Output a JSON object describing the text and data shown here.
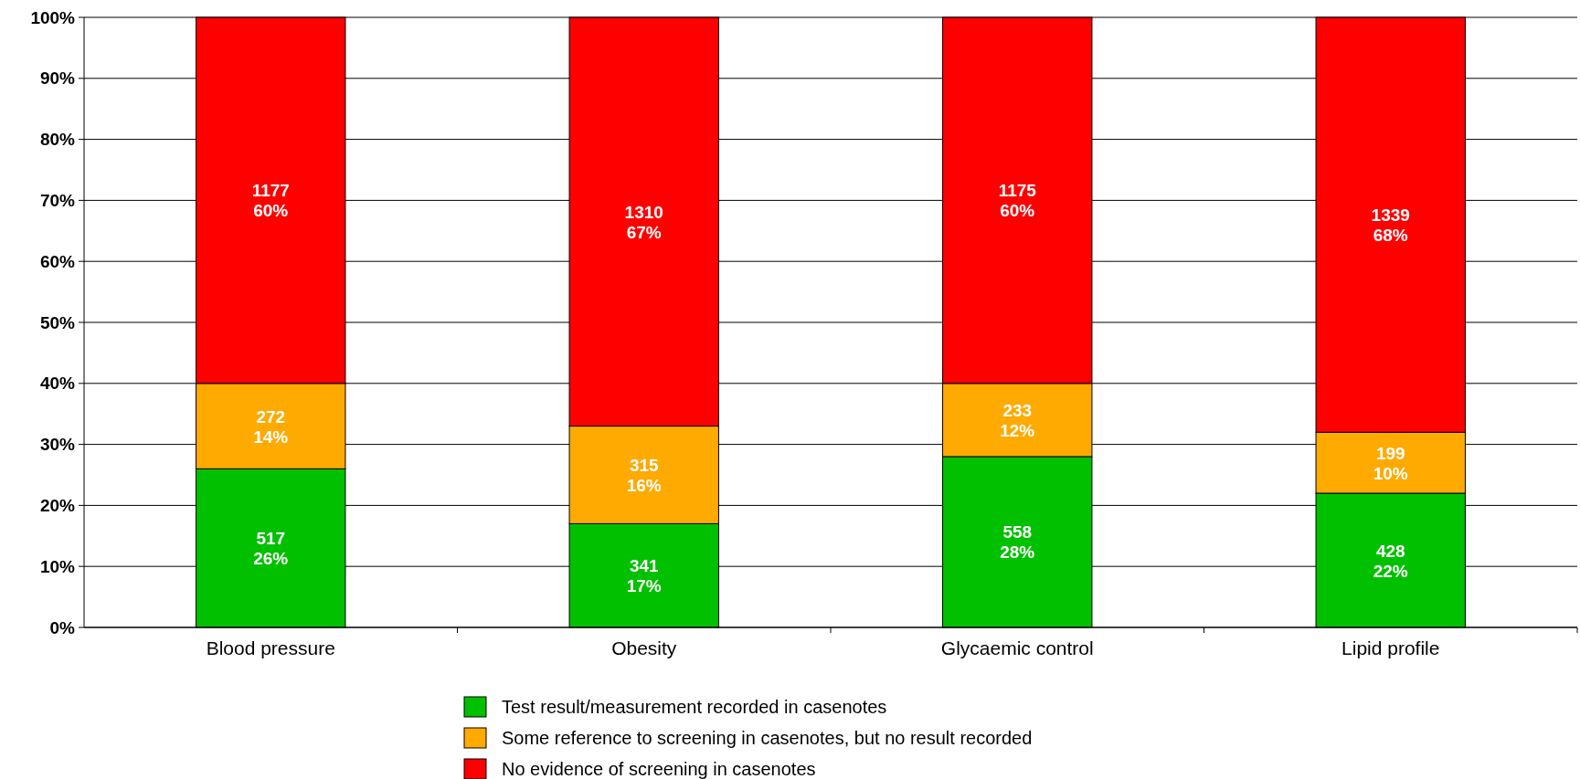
{
  "chart_data": {
    "type": "bar",
    "stacked": true,
    "categories": [
      "Blood pressure",
      "Obesity",
      "Glycaemic control",
      "Lipid profile"
    ],
    "series": [
      {
        "name": "Test  result/measurement recorded in casenotes",
        "color": "#00c000",
        "values": [
          26,
          17,
          28,
          22
        ],
        "value_labels": [
          "517\n26%",
          "341\n17%",
          "558\n28%",
          "428\n22%"
        ]
      },
      {
        "name": "Some reference to screening in casenotes, but no result recorded",
        "color": "#ffaa00",
        "values": [
          14,
          16,
          12,
          10
        ],
        "value_labels": [
          "272\n14%",
          "315\n16%",
          "233\n12%",
          "199\n10%"
        ]
      },
      {
        "name": "No evidence of screening in casenotes",
        "color": "#ff0000",
        "values": [
          60,
          67,
          60,
          68
        ],
        "value_labels": [
          "1177\n60%",
          "1310\n67%",
          "1175\n60%",
          "1339\n68%"
        ]
      }
    ],
    "ylim": [
      0,
      100
    ],
    "yticks": [
      {
        "value": 0,
        "label": "0%"
      },
      {
        "value": 10,
        "label": "10%"
      },
      {
        "value": 20,
        "label": "20%"
      },
      {
        "value": 30,
        "label": "30%"
      },
      {
        "value": 40,
        "label": "40%"
      },
      {
        "value": 50,
        "label": "50%"
      },
      {
        "value": 60,
        "label": "60%"
      },
      {
        "value": 70,
        "label": "70%"
      },
      {
        "value": 80,
        "label": "80%"
      },
      {
        "value": 90,
        "label": "90%"
      },
      {
        "value": 100,
        "label": "100%"
      }
    ],
    "grid": "y",
    "legend": "bottom"
  }
}
